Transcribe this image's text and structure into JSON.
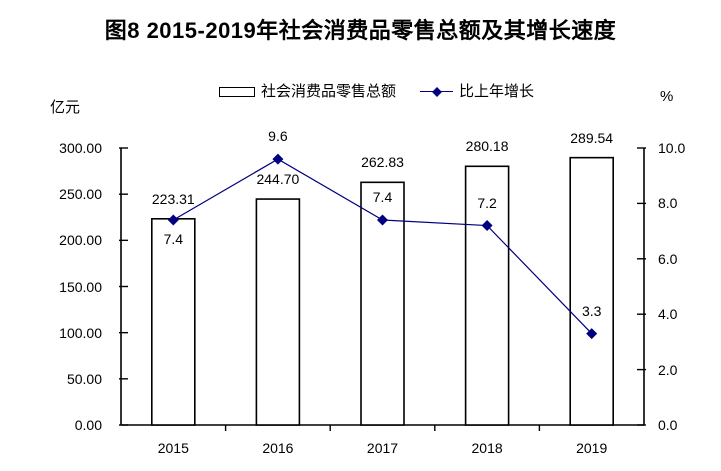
{
  "chart_data": {
    "type": "bar+line",
    "title": "图8 2015-2019年社会消费品零售总额及其增长速度",
    "categories": [
      "2015",
      "2016",
      "2017",
      "2018",
      "2019"
    ],
    "series": [
      {
        "name": "社会消费品零售总额",
        "type": "bar",
        "axis": "left",
        "values": [
          223.31,
          244.7,
          262.83,
          280.18,
          289.54
        ],
        "labels": [
          "223.31",
          "244.70",
          "262.83",
          "280.18",
          "289.54"
        ]
      },
      {
        "name": "比上年增长",
        "type": "line",
        "axis": "right",
        "values": [
          7.4,
          9.6,
          7.4,
          7.2,
          3.3
        ],
        "labels": [
          "7.4",
          "9.6",
          "7.4",
          "7.2",
          "3.3"
        ],
        "label_positions": [
          "below",
          "above",
          "above",
          "above",
          "above"
        ]
      }
    ],
    "left_axis": {
      "unit": "亿元",
      "min": 0,
      "max": 300,
      "tick_values": [
        300,
        250,
        200,
        150,
        100,
        50,
        0
      ],
      "tick_labels": [
        "300.00",
        "250.00",
        "200.00",
        "150.00",
        "100.00",
        "50.00",
        "0.00"
      ]
    },
    "right_axis": {
      "unit": "%",
      "min": 0,
      "max": 10,
      "tick_values": [
        10,
        8,
        6,
        4,
        2,
        0
      ],
      "tick_labels": [
        "10.0",
        "8.0",
        "6.0",
        "4.0",
        "2.0",
        "0.0"
      ]
    },
    "legend_position": "top",
    "grid": false,
    "colors": {
      "line": "#000080",
      "marker": "#000080",
      "bar_fill": "#ffffff",
      "bar_border": "#000000",
      "axis": "#000000",
      "text": "#000000",
      "background": "#ffffff"
    }
  }
}
